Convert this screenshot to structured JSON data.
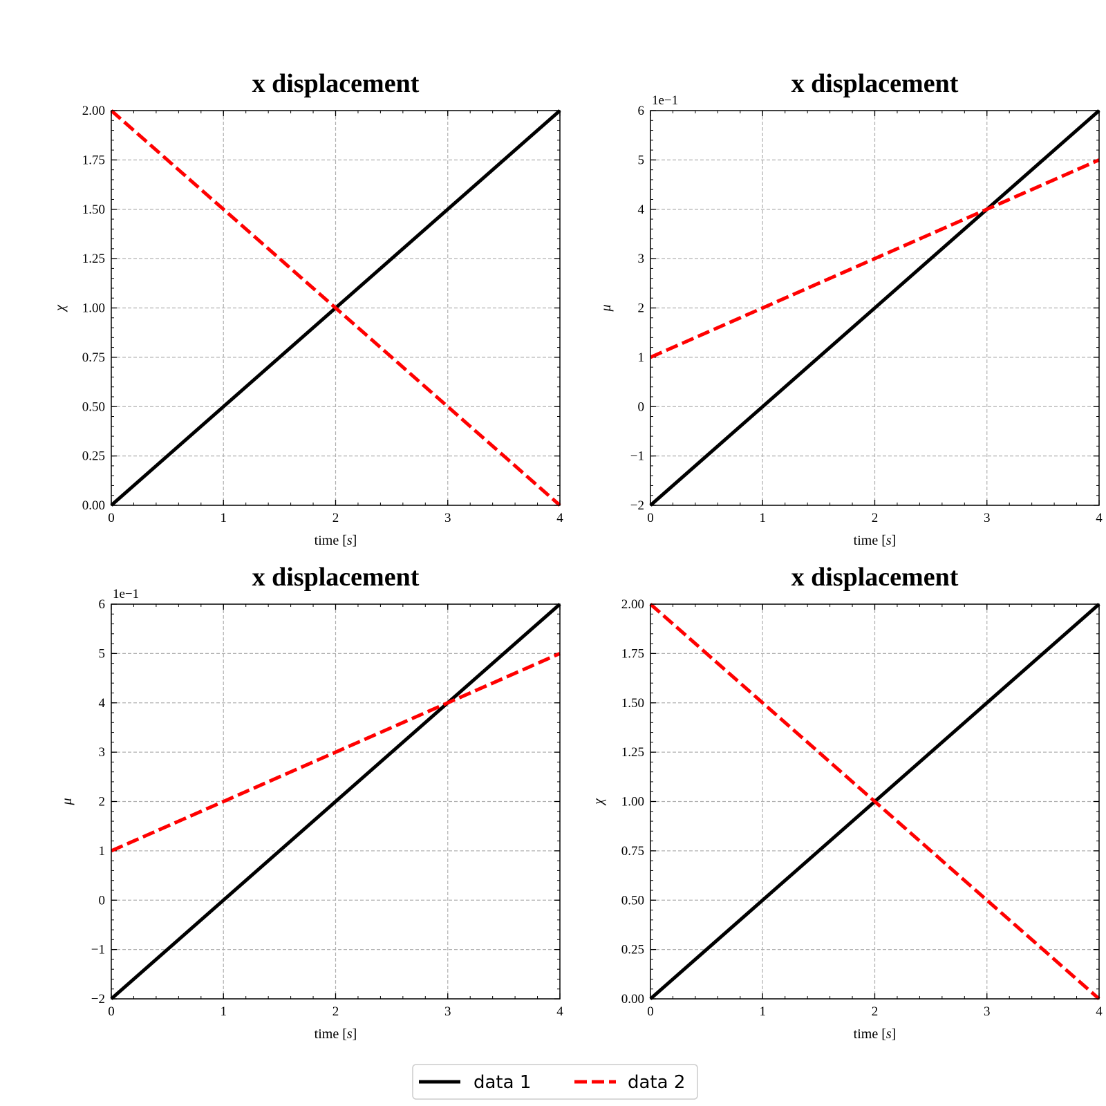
{
  "chart_data": [
    {
      "type": "line",
      "title": "x displacement",
      "xlabel": "time [s]",
      "ylabel": "χ",
      "xlim": [
        0,
        4
      ],
      "ylim": [
        0,
        2
      ],
      "xticks": [
        0,
        1,
        2,
        3,
        4
      ],
      "xtick_labels": [
        "0",
        "1",
        "2",
        "3",
        "4"
      ],
      "yticks": [
        0,
        0.25,
        0.5,
        0.75,
        1,
        1.25,
        1.5,
        1.75,
        2
      ],
      "ytick_labels": [
        "0.00",
        "0.25",
        "0.50",
        "0.75",
        "1.00",
        "1.25",
        "1.50",
        "1.75",
        "2.00"
      ],
      "offset_text": "",
      "grid": true,
      "series": [
        {
          "name": "data 1",
          "color": "#000000",
          "style": "solid",
          "x": [
            0,
            4
          ],
          "y": [
            0,
            2
          ]
        },
        {
          "name": "data 2",
          "color": "#ff0000",
          "style": "dashed",
          "x": [
            0,
            4
          ],
          "y": [
            2,
            0
          ]
        }
      ]
    },
    {
      "type": "line",
      "title": "x displacement",
      "xlabel": "time [s]",
      "ylabel": "μ",
      "xlim": [
        0,
        4
      ],
      "ylim": [
        -2,
        6
      ],
      "xticks": [
        0,
        1,
        2,
        3,
        4
      ],
      "xtick_labels": [
        "0",
        "1",
        "2",
        "3",
        "4"
      ],
      "yticks": [
        -2,
        -1,
        0,
        1,
        2,
        3,
        4,
        5,
        6
      ],
      "ytick_labels": [
        "−2",
        "−1",
        "0",
        "1",
        "2",
        "3",
        "4",
        "5",
        "6"
      ],
      "offset_text": "1e−1",
      "grid": true,
      "series": [
        {
          "name": "data 1",
          "color": "#000000",
          "style": "solid",
          "x": [
            0,
            4
          ],
          "y": [
            -2,
            6
          ]
        },
        {
          "name": "data 2",
          "color": "#ff0000",
          "style": "dashed",
          "x": [
            0,
            4
          ],
          "y": [
            1,
            5
          ]
        }
      ]
    },
    {
      "type": "line",
      "title": "x displacement",
      "xlabel": "time [s]",
      "ylabel": "μ",
      "xlim": [
        0,
        4
      ],
      "ylim": [
        -2,
        6
      ],
      "xticks": [
        0,
        1,
        2,
        3,
        4
      ],
      "xtick_labels": [
        "0",
        "1",
        "2",
        "3",
        "4"
      ],
      "yticks": [
        -2,
        -1,
        0,
        1,
        2,
        3,
        4,
        5,
        6
      ],
      "ytick_labels": [
        "−2",
        "−1",
        "0",
        "1",
        "2",
        "3",
        "4",
        "5",
        "6"
      ],
      "offset_text": "1e−1",
      "grid": true,
      "series": [
        {
          "name": "data 1",
          "color": "#000000",
          "style": "solid",
          "x": [
            0,
            4
          ],
          "y": [
            -2,
            6
          ]
        },
        {
          "name": "data 2",
          "color": "#ff0000",
          "style": "dashed",
          "x": [
            0,
            4
          ],
          "y": [
            1,
            5
          ]
        }
      ]
    },
    {
      "type": "line",
      "title": "x displacement",
      "xlabel": "time [s]",
      "ylabel": "χ",
      "xlim": [
        0,
        4
      ],
      "ylim": [
        0,
        2
      ],
      "xticks": [
        0,
        1,
        2,
        3,
        4
      ],
      "xtick_labels": [
        "0",
        "1",
        "2",
        "3",
        "4"
      ],
      "yticks": [
        0,
        0.25,
        0.5,
        0.75,
        1,
        1.25,
        1.5,
        1.75,
        2
      ],
      "ytick_labels": [
        "0.00",
        "0.25",
        "0.50",
        "0.75",
        "1.00",
        "1.25",
        "1.50",
        "1.75",
        "2.00"
      ],
      "offset_text": "",
      "grid": true,
      "series": [
        {
          "name": "data 1",
          "color": "#000000",
          "style": "solid",
          "x": [
            0,
            4
          ],
          "y": [
            0,
            2
          ]
        },
        {
          "name": "data 2",
          "color": "#ff0000",
          "style": "dashed",
          "x": [
            0,
            4
          ],
          "y": [
            2,
            0
          ]
        }
      ]
    }
  ],
  "legend": {
    "placement": "bottom-center",
    "entries": [
      {
        "label": "data 1",
        "color": "#000000",
        "style": "solid"
      },
      {
        "label": "data 2",
        "color": "#ff0000",
        "style": "dashed"
      }
    ]
  }
}
